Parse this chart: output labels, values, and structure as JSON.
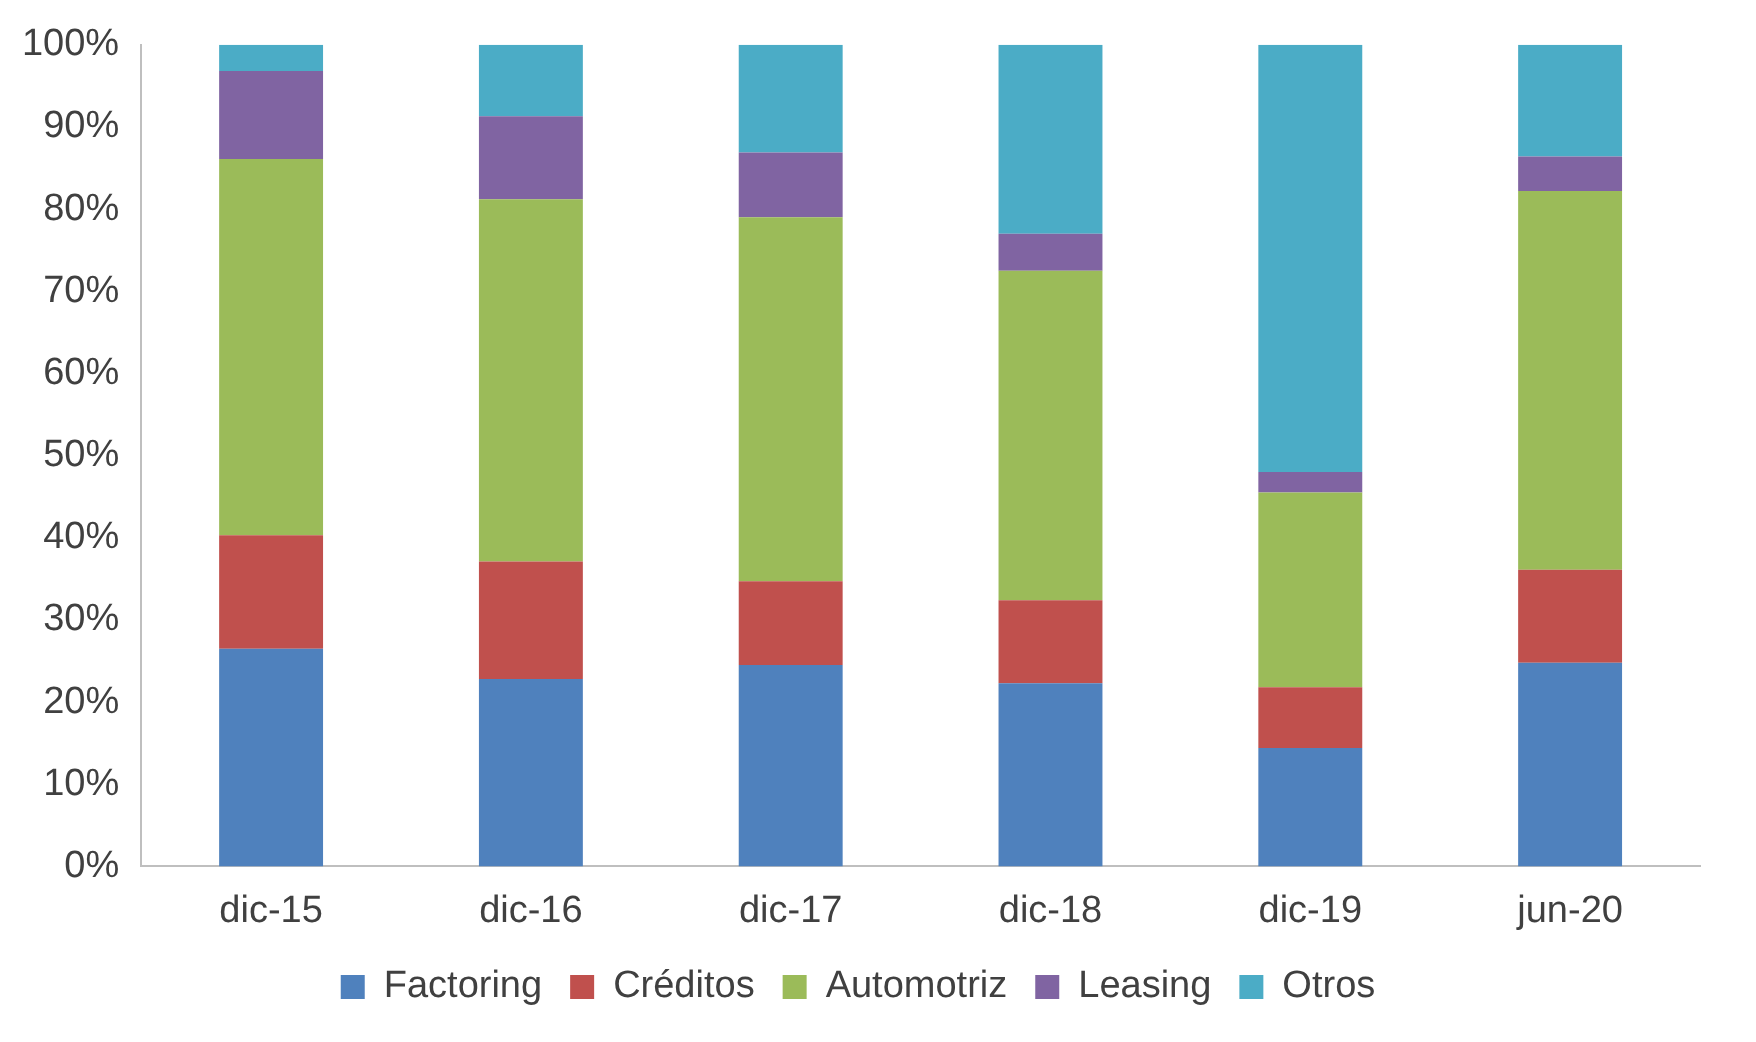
{
  "chart_data": {
    "type": "bar",
    "stacked": true,
    "categories": [
      "dic-15",
      "dic-16",
      "dic-17",
      "dic-18",
      "dic-19",
      "jun-20"
    ],
    "series": [
      {
        "name": "Factoring",
        "color": "#4f81bd",
        "values": [
          26.5,
          22.8,
          24.5,
          22.3,
          14.4,
          24.8
        ]
      },
      {
        "name": "Créditos",
        "color": "#c0504d",
        "values": [
          13.8,
          14.3,
          10.2,
          10.1,
          7.4,
          11.3
        ]
      },
      {
        "name": "Automotriz",
        "color": "#9bbb59",
        "values": [
          45.8,
          44.1,
          44.3,
          40.1,
          23.7,
          46.1
        ]
      },
      {
        "name": "Leasing",
        "color": "#8064a2",
        "values": [
          10.7,
          10.1,
          7.9,
          4.5,
          2.5,
          4.2
        ]
      },
      {
        "name": "Otros",
        "color": "#4bacc6",
        "values": [
          3.2,
          8.7,
          13.1,
          23.0,
          52.0,
          13.6
        ]
      }
    ],
    "ylim": [
      0,
      100
    ],
    "yticks": [
      {
        "value": 0,
        "label": "0%"
      },
      {
        "value": 10,
        "label": "10%"
      },
      {
        "value": 20,
        "label": "20%"
      },
      {
        "value": 30,
        "label": "30%"
      },
      {
        "value": 40,
        "label": "40%"
      },
      {
        "value": 50,
        "label": "50%"
      },
      {
        "value": 60,
        "label": "60%"
      },
      {
        "value": 70,
        "label": "70%"
      },
      {
        "value": 80,
        "label": "80%"
      },
      {
        "value": 90,
        "label": "90%"
      },
      {
        "value": 100,
        "label": "100%"
      }
    ],
    "grid": false,
    "legend": "bottom"
  }
}
